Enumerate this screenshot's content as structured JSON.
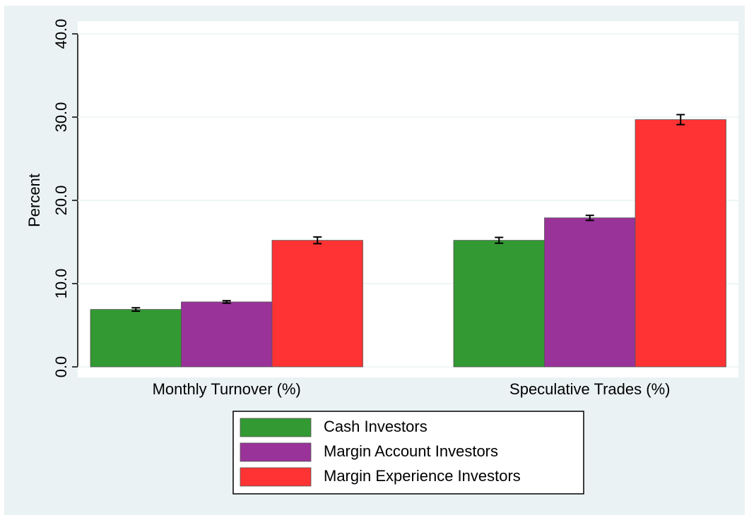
{
  "chart_data": {
    "type": "bar",
    "ylabel": "Percent",
    "categories": [
      "Monthly Turnover (%)",
      "Speculative Trades (%)"
    ],
    "series": [
      {
        "name": "Cash Investors",
        "color": "#339933",
        "values": [
          6.9,
          15.2
        ],
        "errors": [
          0.2,
          0.35
        ]
      },
      {
        "name": "Margin Account Investors",
        "color": "#993399",
        "values": [
          7.8,
          17.9
        ],
        "errors": [
          0.15,
          0.3
        ]
      },
      {
        "name": "Margin Experience Investors",
        "color": "#ff3333",
        "values": [
          15.2,
          29.7
        ],
        "errors": [
          0.4,
          0.6
        ]
      }
    ],
    "ylim": [
      0,
      40
    ],
    "yticks": [
      {
        "value": 0,
        "label": "0.0"
      },
      {
        "value": 10,
        "label": "10.0"
      },
      {
        "value": 20,
        "label": "20.0"
      },
      {
        "value": 30,
        "label": "30.0"
      },
      {
        "value": 40,
        "label": "40.0"
      }
    ],
    "grid": true
  }
}
